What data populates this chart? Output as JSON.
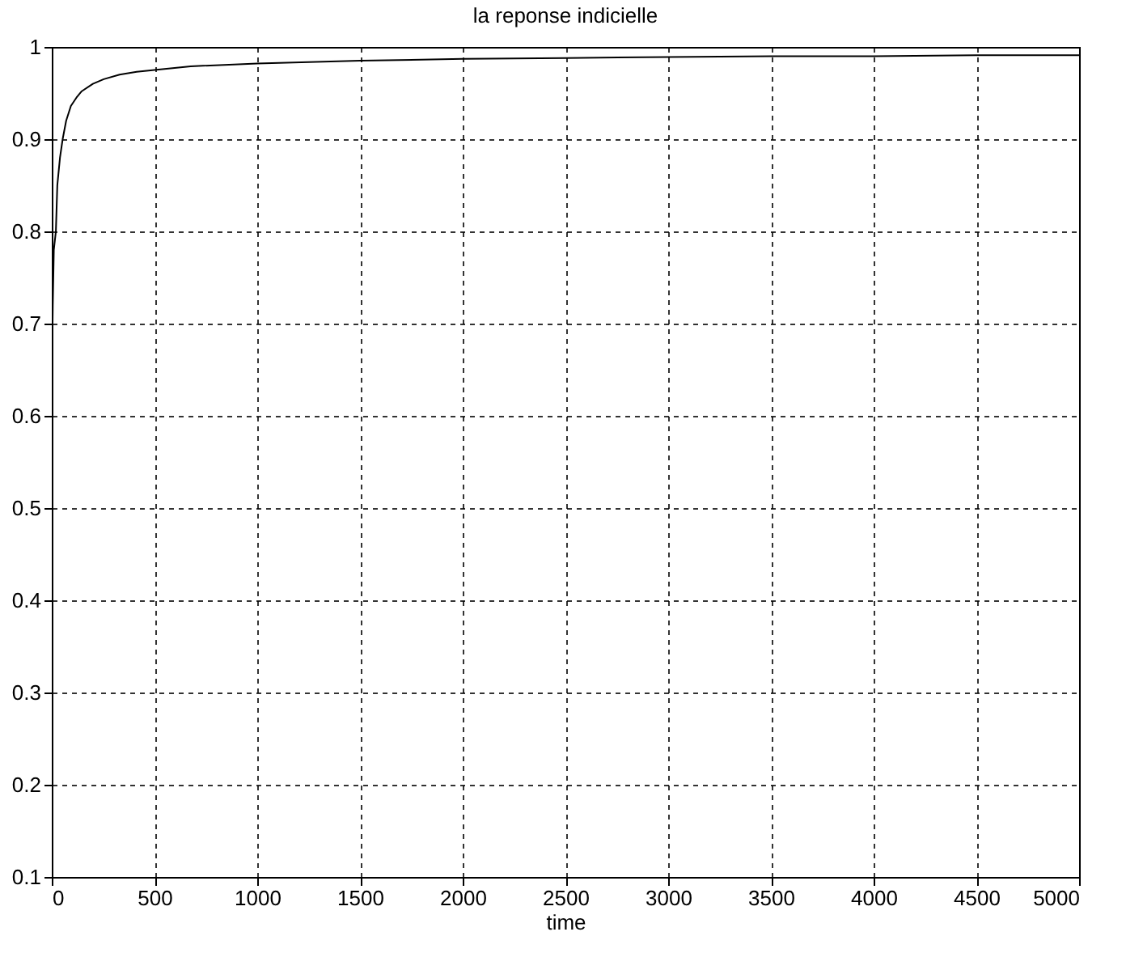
{
  "chart_data": {
    "type": "line",
    "title": "la reponse indicielle",
    "xlabel": "time",
    "x": [
      0,
      5,
      10,
      20,
      27,
      40,
      53,
      70,
      93,
      120,
      146,
      200,
      253,
      330,
      413,
      500,
      676,
      1000,
      1500,
      2000,
      2500,
      3000,
      3500,
      4000,
      4500,
      5000
    ],
    "series": [
      {
        "color": "#000000",
        "values": [
          0.63,
          0.72,
          0.78,
          0.8,
          0.85,
          0.88,
          0.9,
          0.92,
          0.936,
          0.945,
          0.952,
          0.96,
          0.965,
          0.97,
          0.973,
          0.975,
          0.979,
          0.982,
          0.985,
          0.987,
          0.988,
          0.989,
          0.99,
          0.99,
          0.991,
          0.991
        ]
      }
    ],
    "xlim": [
      0,
      5000
    ],
    "xticks": [
      0,
      500,
      1000,
      1500,
      2000,
      2500,
      3000,
      3500,
      4000,
      4500,
      5000
    ],
    "ylim": [
      0.1,
      1
    ],
    "yticks": [
      0.1,
      0.2,
      0.3,
      0.4,
      0.5,
      0.6,
      0.7,
      0.8,
      0.9,
      1
    ],
    "grid": true,
    "line_style": "solid",
    "marker": "none"
  }
}
